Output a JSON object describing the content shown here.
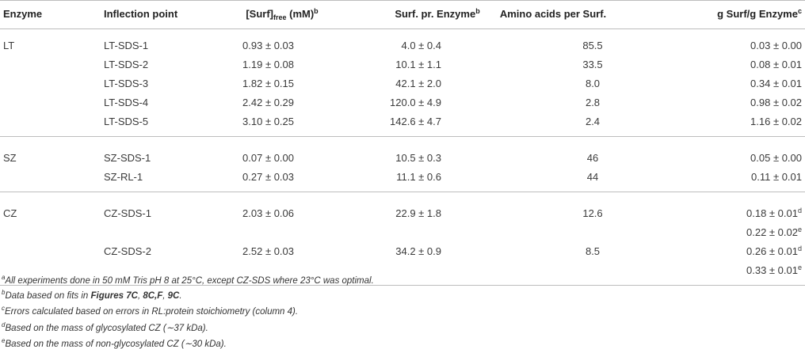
{
  "table": {
    "header": [
      {
        "text": "Enzyme"
      },
      {
        "text": "Inflection point"
      },
      {
        "text": "[Surf]",
        "sub": "free",
        "after": " (mM)",
        "sup": "b"
      },
      {
        "text": "Surf. pr. Enzyme",
        "sup": "b"
      },
      {
        "text": "Amino acids per Surf."
      },
      {
        "text": "g Surf/g Enzyme",
        "sup": "c"
      }
    ],
    "groups": [
      {
        "enzyme": "LT",
        "rows": [
          [
            "LT-SDS-1",
            "0.93 ± 0.03",
            "4.0 ± 0.4",
            "85.5",
            [
              {
                "text": "0.03 ± 0.00"
              }
            ]
          ],
          [
            "LT-SDS-2",
            "1.19 ± 0.08",
            "10.1 ± 1.1",
            "33.5",
            [
              {
                "text": "0.08 ± 0.01"
              }
            ]
          ],
          [
            "LT-SDS-3",
            "1.82 ± 0.15",
            "42.1 ± 2.0",
            "8.0",
            [
              {
                "text": "0.34 ± 0.01"
              }
            ]
          ],
          [
            "LT-SDS-4",
            "2.42 ± 0.29",
            "120.0 ± 4.9",
            "2.8",
            [
              {
                "text": "0.98 ± 0.02"
              }
            ]
          ],
          [
            "LT-SDS-5",
            "3.10 ± 0.25",
            "142.6 ± 4.7",
            "2.4",
            [
              {
                "text": "1.16 ± 0.02"
              }
            ]
          ]
        ]
      },
      {
        "enzyme": "SZ",
        "rows": [
          [
            "SZ-SDS-1",
            "0.07 ± 0.00",
            "10.5 ± 0.3",
            "46",
            [
              {
                "text": "0.05 ± 0.00"
              }
            ]
          ],
          [
            "SZ-RL-1",
            "0.27 ± 0.03",
            "11.1 ± 0.6",
            "44",
            [
              {
                "text": "0.11 ± 0.01"
              }
            ]
          ]
        ]
      },
      {
        "enzyme": "CZ",
        "rows": [
          [
            "CZ-SDS-1",
            "2.03 ± 0.06",
            "22.9 ± 1.8",
            "12.6",
            [
              {
                "text": "0.18 ± 0.01",
                "sup": "d"
              },
              {
                "text": "0.22 ± 0.02",
                "sup": "e"
              }
            ]
          ],
          [
            "CZ-SDS-2",
            "2.52 ± 0.03",
            "34.2 ± 0.9",
            "8.5",
            [
              {
                "text": "0.26 ± 0.01",
                "sup": "d"
              },
              {
                "text": "0.33 ± 0.01",
                "sup": "e"
              }
            ]
          ]
        ]
      }
    ]
  },
  "footnotes": [
    {
      "mark": "a",
      "parts": [
        "All experiments done in 50 mM Tris pH 8 at 25°C, except CZ-SDS where 23°C was optimal."
      ]
    },
    {
      "mark": "b",
      "parts": [
        "Data based on fits in ",
        "Figures 7C",
        ", ",
        "8C,F",
        ", ",
        "9C",
        "."
      ]
    },
    {
      "mark": "c",
      "parts": [
        "Errors calculated based on errors in RL:protein stoichiometry (column 4)."
      ]
    },
    {
      "mark": "d",
      "parts": [
        "Based on the mass of glycosylated CZ (∼37 kDa)."
      ]
    },
    {
      "mark": "e",
      "parts": [
        "Based on the mass of non-glycosylated CZ (∼30 kDa)."
      ]
    }
  ]
}
